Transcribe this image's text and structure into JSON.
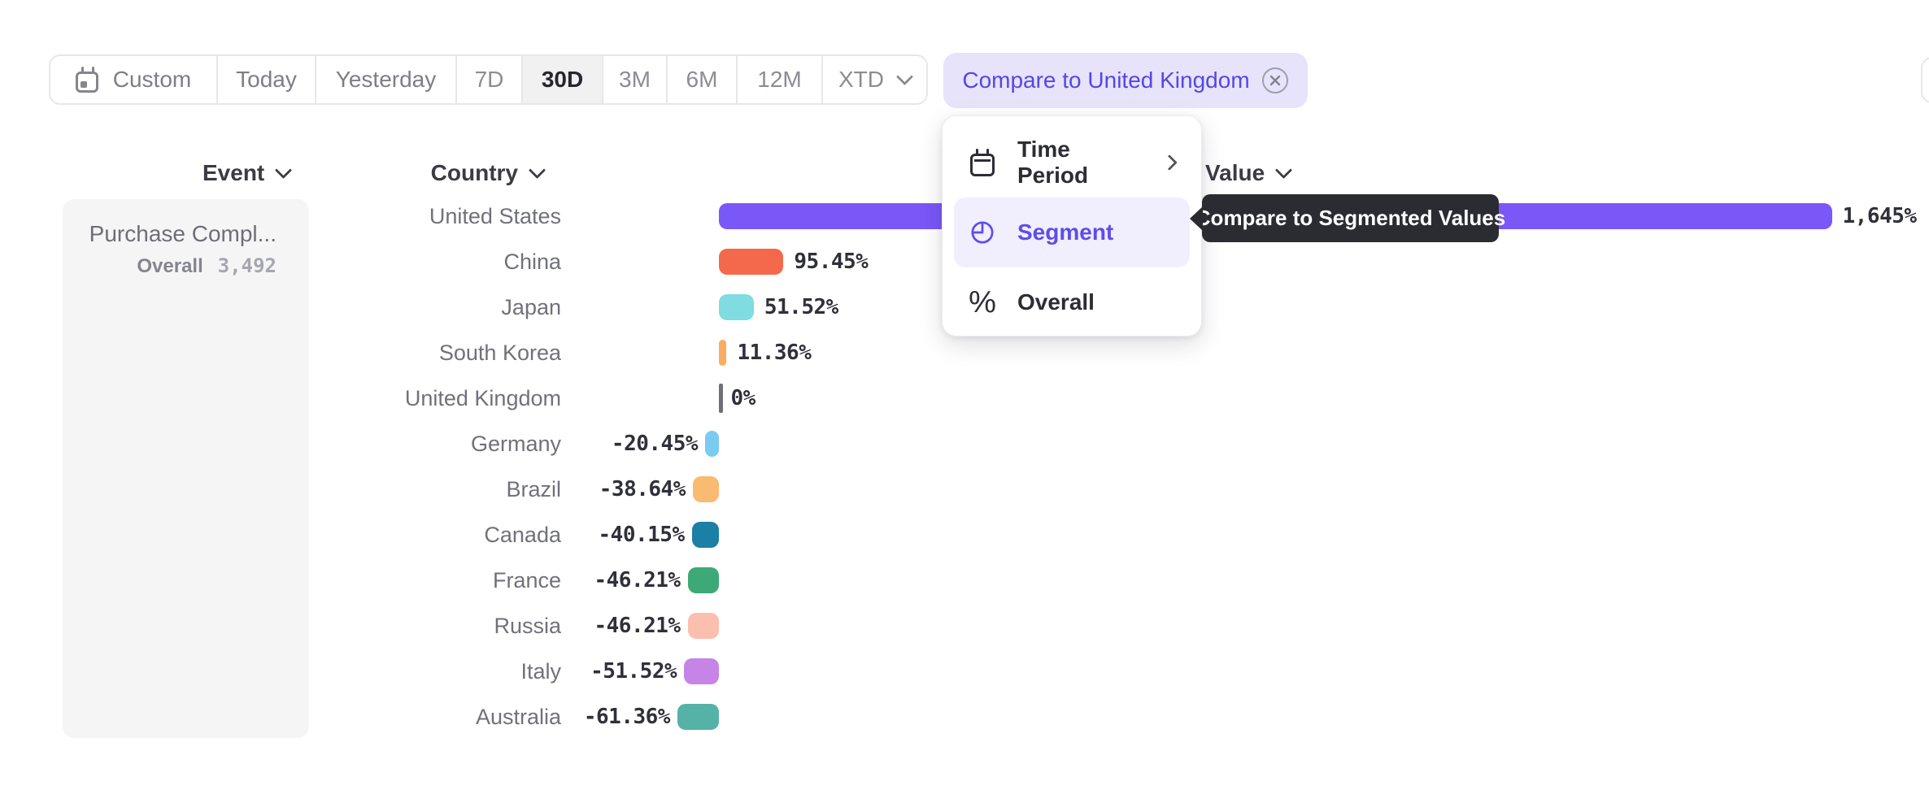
{
  "toolbar": {
    "date_ranges": [
      {
        "label": "Custom",
        "icon": "calendar",
        "active": false
      },
      {
        "label": "Today",
        "active": false
      },
      {
        "label": "Yesterday",
        "active": false
      },
      {
        "label": "7D",
        "active": false
      },
      {
        "label": "30D",
        "active": true
      },
      {
        "label": "3M",
        "active": false
      },
      {
        "label": "6M",
        "active": false
      },
      {
        "label": "12M",
        "active": false
      },
      {
        "label": "XTD",
        "active": false,
        "dropdown": true
      }
    ],
    "compare_button": {
      "label": "Compare to United Kingdom",
      "close_icon": "circle-x"
    }
  },
  "column_headers": {
    "event": "Event",
    "country": "Country",
    "value": "Value"
  },
  "event_panel": {
    "event_name": "Purchase Compl...",
    "metric_label": "Overall",
    "metric_value": "3,492"
  },
  "chart_data": {
    "type": "bar",
    "orientation": "horizontal",
    "categories": [
      "United States",
      "China",
      "Japan",
      "South Korea",
      "United Kingdom",
      "Germany",
      "Brazil",
      "Canada",
      "France",
      "Russia",
      "Italy",
      "Australia"
    ],
    "values": [
      1645,
      95.45,
      51.52,
      11.36,
      0,
      -20.45,
      -38.64,
      -40.15,
      -46.21,
      -46.21,
      -51.52,
      -61.36
    ],
    "value_labels": [
      "1,645%",
      "95.45%",
      "51.52%",
      "11.36%",
      "0%",
      "-20.45%",
      "-38.64%",
      "-40.15%",
      "-46.21%",
      "-46.21%",
      "-51.52%",
      "-61.36%"
    ],
    "bar_colors": [
      "#7a57f7",
      "#f4694b",
      "#7fdce0",
      "#f8ad62",
      "#6f6f78",
      "#79cbf2",
      "#f9ba72",
      "#1b7fa6",
      "#3da976",
      "#fbbfb0",
      "#c584e6",
      "#55b2a7"
    ],
    "patterned": [
      false,
      false,
      false,
      false,
      false,
      true,
      true,
      false,
      false,
      false,
      false,
      false
    ],
    "baseline_category": "United Kingdom",
    "unit": "%",
    "xlabel": "",
    "ylabel": "Country",
    "axis_hidden": true,
    "legend": "none"
  },
  "menu": {
    "items": [
      {
        "label": "Time Period",
        "icon": "calendar",
        "submenu": true,
        "selected": false
      },
      {
        "label": "Segment",
        "icon": "segment",
        "submenu": false,
        "selected": true
      },
      {
        "label": "Overall",
        "icon": "percent",
        "submenu": false,
        "selected": false
      }
    ]
  },
  "tooltip": {
    "text": "Compare to Segmented Values"
  },
  "colors": {
    "accent": "#5c4ee8",
    "pill_bg": "#e6e3fb",
    "menu_highlight": "#f1eefd",
    "tooltip_bg": "#2b2b32",
    "panel_bg": "#f5f5f6",
    "label_gray": "#71717a",
    "value_text": "#30303a"
  }
}
